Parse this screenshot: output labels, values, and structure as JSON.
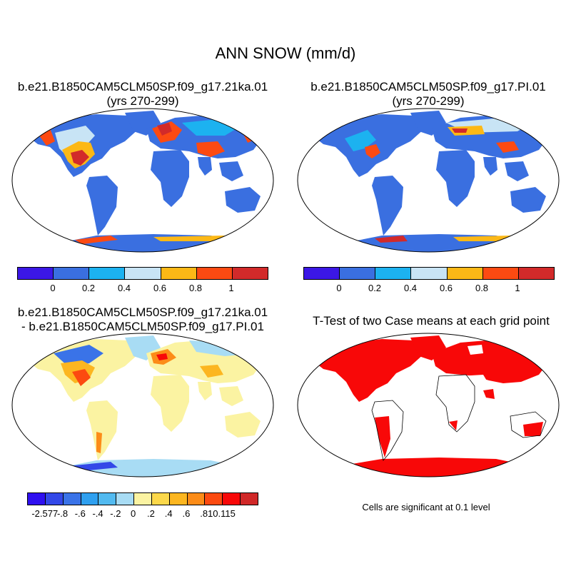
{
  "title": "ANN SNOW (mm/d)",
  "panels": {
    "case1": {
      "title_line1": "b.e21.B1850CAM5CLM50SP.f09_g17.21ka.01",
      "title_line2": "(yrs 270-299)"
    },
    "case2": {
      "title_line1": "b.e21.B1850CAM5CLM50SP.f09_g17.PI.01",
      "title_line2": "(yrs 270-299)"
    },
    "diff": {
      "title_line1": "b.e21.B1850CAM5CLM50SP.f09_g17.21ka.01",
      "title_line2": "- b.e21.B1850CAM5CLM50SP.f09_g17.PI.01"
    },
    "ttest": {
      "title": "T-Test of two Case means at each grid point",
      "note": "Cells are significant at 0.1 level"
    }
  },
  "colorbars": {
    "case": {
      "colors": [
        "#3b17e6",
        "#3a6fe0",
        "#1cb2f0",
        "#c8e4f5",
        "#fcb816",
        "#fc4a12",
        "#d22a2a"
      ],
      "labels": [
        "0",
        "0.2",
        "0.4",
        "0.6",
        "0.8",
        "1"
      ]
    },
    "diff": {
      "colors": [
        "#2f10f0",
        "#3348e8",
        "#3a73e8",
        "#2fa0f0",
        "#52baf0",
        "#a8dcf4",
        "#fbf3a2",
        "#fcd84a",
        "#fcb620",
        "#fc8c18",
        "#fc4a10",
        "#f80808",
        "#d02828"
      ],
      "labels": [
        "-2.577",
        "-.8",
        "-.6",
        "-.4",
        "-.2",
        "0",
        ".2",
        ".4",
        ".6",
        ".8",
        "10.115"
      ]
    }
  },
  "colors": {
    "ocean": "#ffffff",
    "land_low": "#3a6fe0",
    "diff_zero": "#fbf3a2",
    "significant": "#f80808"
  }
}
